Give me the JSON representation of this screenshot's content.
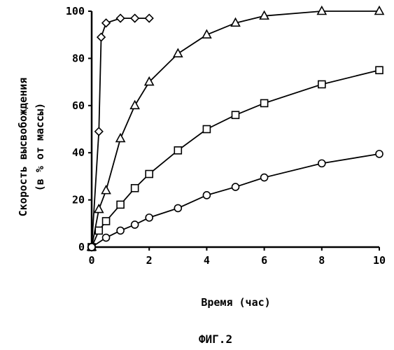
{
  "chart_data": {
    "type": "line",
    "xlabel": "Время (час)",
    "ylabel_line1": "Скорость высвобождения",
    "ylabel_line2": "(в % от массы)",
    "caption": "ФИГ.2",
    "xlim": [
      0,
      10
    ],
    "ylim": [
      0,
      100
    ],
    "x_ticks": [
      0,
      2,
      4,
      6,
      8,
      10
    ],
    "y_ticks": [
      0,
      20,
      40,
      60,
      80,
      100
    ],
    "grid": false,
    "legend": "none",
    "series": [
      {
        "marker": "diamond",
        "x": [
          0,
          0.25,
          0.33,
          0.5,
          1,
          1.5,
          2
        ],
        "y": [
          0,
          49,
          89,
          95,
          97,
          97,
          97
        ]
      },
      {
        "marker": "triangle",
        "x": [
          0,
          0.25,
          0.5,
          1,
          1.5,
          2,
          3,
          4,
          5,
          6,
          8,
          10
        ],
        "y": [
          0,
          16,
          24,
          46,
          60,
          70,
          82,
          90,
          95,
          98,
          100,
          100
        ]
      },
      {
        "marker": "square",
        "x": [
          0,
          0.25,
          0.5,
          1,
          1.5,
          2,
          3,
          4,
          5,
          6,
          8,
          10
        ],
        "y": [
          0,
          7,
          11,
          18,
          25,
          31,
          41,
          50,
          56,
          61,
          69,
          75
        ]
      },
      {
        "marker": "circle",
        "x": [
          0,
          0.5,
          1,
          1.5,
          2,
          3,
          4,
          5,
          6,
          8,
          10
        ],
        "y": [
          0,
          4,
          7,
          9.5,
          12.5,
          16.5,
          22,
          25.5,
          29.5,
          35.5,
          39.5
        ]
      }
    ]
  }
}
